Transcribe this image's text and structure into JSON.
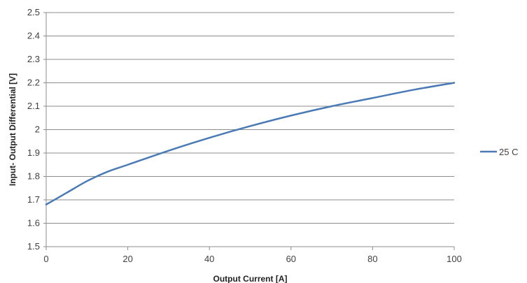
{
  "chart_data": {
    "type": "line",
    "title": "",
    "xlabel": "Output Current [A]",
    "ylabel": "Input- Output Differential  [V]",
    "xlim": [
      0,
      100
    ],
    "ylim": [
      1.5,
      2.5
    ],
    "x_ticks": [
      0,
      20,
      40,
      60,
      80,
      100
    ],
    "y_ticks": [
      1.5,
      1.6,
      1.7,
      1.8,
      1.9,
      2.0,
      2.1,
      2.2,
      2.3,
      2.4,
      2.5
    ],
    "x_tick_labels": [
      "0",
      "20",
      "40",
      "60",
      "80",
      "100"
    ],
    "y_tick_labels": [
      "1.5",
      "1.6",
      "1.7",
      "1.8",
      "1.9",
      "2",
      "2.1",
      "2.2",
      "2.3",
      "2.4",
      "2.5"
    ],
    "grid": "horizontal",
    "legend_position": "right",
    "series": [
      {
        "name": "25 C",
        "color": "#4a7ab5",
        "x": [
          0,
          5,
          10,
          15,
          20,
          30,
          40,
          50,
          60,
          70,
          80,
          90,
          100
        ],
        "y": [
          1.68,
          1.73,
          1.78,
          1.82,
          1.85,
          1.91,
          1.965,
          2.015,
          2.06,
          2.1,
          2.135,
          2.17,
          2.2
        ]
      }
    ]
  }
}
